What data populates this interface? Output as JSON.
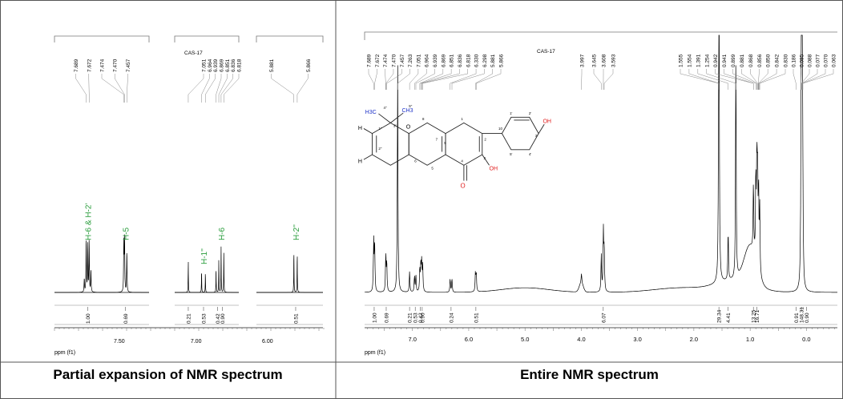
{
  "captions": {
    "left": "Partial expansion of NMR spectrum",
    "right": "Entire NMR spectrum"
  },
  "colors": {
    "spectrum": "#000000",
    "assignment": "#2a9d3c",
    "methyl": "#1f33c8",
    "hydroxyl": "#e01b1b",
    "frame": "#555555"
  },
  "chart_data": [
    {
      "type": "line",
      "title": "",
      "xlabel": "ppm (f1)",
      "ylabel": "",
      "panels": [
        {
          "sample_label": "",
          "xlim": [
            7.87,
            7.33
          ],
          "ticks": [
            {
              "value": 7.5,
              "label": "7.50"
            }
          ],
          "peak_labels": [
            "7.689",
            "7.672",
            "7.474",
            "7.470",
            "7.457"
          ],
          "peaks": [
            {
              "ppm": 7.7,
              "h": 0.18
            },
            {
              "ppm": 7.689,
              "h": 0.72
            },
            {
              "ppm": 7.68,
              "h": 0.62
            },
            {
              "ppm": 7.672,
              "h": 0.7
            },
            {
              "ppm": 7.662,
              "h": 0.3
            },
            {
              "ppm": 7.474,
              "h": 0.66
            },
            {
              "ppm": 7.47,
              "h": 0.72
            },
            {
              "ppm": 7.457,
              "h": 0.55
            }
          ],
          "assignments": [
            {
              "ppm": 7.68,
              "label": "H-6 & H-2'"
            },
            {
              "ppm": 7.466,
              "label": "H-5"
            }
          ],
          "integrals": [
            {
              "ppm": 7.68,
              "value": "1.00"
            },
            {
              "ppm": 7.466,
              "value": "0.69"
            }
          ]
        },
        {
          "sample_label": "CAS-17",
          "xlim": [
            7.14,
            6.72
          ],
          "ticks": [
            {
              "value": 7.0,
              "label": "7.00"
            }
          ],
          "peak_labels": [
            "7.051",
            "6.964",
            "6.939",
            "6.869",
            "6.851",
            "6.836",
            "6.818"
          ],
          "peaks": [
            {
              "ppm": 7.051,
              "h": 0.4
            },
            {
              "ppm": 6.964,
              "h": 0.28
            },
            {
              "ppm": 6.939,
              "h": 0.25
            },
            {
              "ppm": 6.869,
              "h": 0.3
            },
            {
              "ppm": 6.851,
              "h": 0.42
            },
            {
              "ppm": 6.836,
              "h": 0.6
            },
            {
              "ppm": 6.818,
              "h": 0.55
            }
          ],
          "assignments": [
            {
              "ppm": 6.951,
              "label": "H-1''"
            },
            {
              "ppm": 6.836,
              "label": "H-6"
            }
          ],
          "integrals": [
            {
              "ppm": 7.051,
              "value": "0.21"
            },
            {
              "ppm": 6.951,
              "value": "0.53"
            },
            {
              "ppm": 6.86,
              "value": "0.42"
            },
            {
              "ppm": 6.827,
              "value": "0.90"
            }
          ]
        },
        {
          "sample_label": "",
          "xlim": [
            6.05,
            5.75
          ],
          "ticks": [
            {
              "value": 6.0,
              "label": "6.00"
            }
          ],
          "peak_labels": [
            "5.881",
            "5.866"
          ],
          "peaks": [
            {
              "ppm": 5.881,
              "h": 0.52
            },
            {
              "ppm": 5.866,
              "h": 0.5
            }
          ],
          "assignments": [
            {
              "ppm": 5.873,
              "label": "H-2''"
            }
          ],
          "integrals": [
            {
              "ppm": 5.873,
              "value": "0.51"
            }
          ]
        }
      ]
    },
    {
      "type": "line",
      "title": "",
      "xlabel": "ppm (f1)",
      "ylabel": "",
      "sample_label": "CAS-17",
      "xlim": [
        7.85,
        -0.55
      ],
      "ticks": [
        7.0,
        6.0,
        5.0,
        4.0,
        3.0,
        2.0,
        1.0,
        0.0
      ],
      "tick_labels": [
        "7.0",
        "6.0",
        "5.0",
        "4.0",
        "3.0",
        "2.0",
        "1.0",
        "0.0"
      ],
      "peak_labels": [
        "7.689",
        "7.672",
        "7.474",
        "7.470",
        "7.457",
        "7.263",
        "7.051",
        "6.964",
        "6.939",
        "6.869",
        "6.851",
        "6.836",
        "6.818",
        "6.330",
        "6.298",
        "5.881",
        "5.866",
        "3.997",
        "3.645",
        "3.608",
        "3.593",
        "1.555",
        "1.554",
        "1.391",
        "1.254",
        "0.942",
        "0.941",
        "0.899",
        "0.881",
        "0.868",
        "0.856",
        "0.850",
        "0.842",
        "0.830",
        "0.186",
        "0.095",
        "0.088",
        "0.077",
        "0.070",
        "0.063"
      ],
      "peaks": [
        {
          "ppm": 7.689,
          "h": 0.22
        },
        {
          "ppm": 7.672,
          "h": 0.21
        },
        {
          "ppm": 7.474,
          "h": 0.16
        },
        {
          "ppm": 7.457,
          "h": 0.13
        },
        {
          "ppm": 7.263,
          "h": 1.0
        },
        {
          "ppm": 7.051,
          "h": 0.09
        },
        {
          "ppm": 6.964,
          "h": 0.07
        },
        {
          "ppm": 6.939,
          "h": 0.07
        },
        {
          "ppm": 6.869,
          "h": 0.1
        },
        {
          "ppm": 6.851,
          "h": 0.12
        },
        {
          "ppm": 6.836,
          "h": 0.12
        },
        {
          "ppm": 6.818,
          "h": 0.11
        },
        {
          "ppm": 6.33,
          "h": 0.06
        },
        {
          "ppm": 6.298,
          "h": 0.06
        },
        {
          "ppm": 5.881,
          "h": 0.08
        },
        {
          "ppm": 5.866,
          "h": 0.08
        },
        {
          "ppm": 3.997,
          "h": 0.04
        },
        {
          "ppm": 3.645,
          "h": 0.16
        },
        {
          "ppm": 3.608,
          "h": 0.26
        },
        {
          "ppm": 3.593,
          "h": 0.19
        },
        {
          "ppm": 1.555,
          "h": 0.96
        },
        {
          "ppm": 1.554,
          "h": 0.9
        },
        {
          "ppm": 1.391,
          "h": 0.22
        },
        {
          "ppm": 1.254,
          "h": 1.0
        },
        {
          "ppm": 0.942,
          "h": 0.3
        },
        {
          "ppm": 0.899,
          "h": 0.36
        },
        {
          "ppm": 0.881,
          "h": 0.44
        },
        {
          "ppm": 0.868,
          "h": 0.4
        },
        {
          "ppm": 0.85,
          "h": 0.34
        },
        {
          "ppm": 0.83,
          "h": 0.28
        },
        {
          "ppm": 0.095,
          "h": 0.55
        },
        {
          "ppm": 0.088,
          "h": 0.88
        },
        {
          "ppm": 0.077,
          "h": 0.7
        },
        {
          "ppm": 0.07,
          "h": 0.45
        },
        {
          "ppm": 0.063,
          "h": 0.2
        }
      ],
      "integrals": [
        {
          "ppm": 7.68,
          "value": "1.00"
        },
        {
          "ppm": 7.466,
          "value": "0.69"
        },
        {
          "ppm": 7.051,
          "value": "0.21"
        },
        {
          "ppm": 6.95,
          "value": "0.53"
        },
        {
          "ppm": 6.86,
          "value": "0.42"
        },
        {
          "ppm": 6.827,
          "value": "0.90"
        },
        {
          "ppm": 6.314,
          "value": "0.24"
        },
        {
          "ppm": 5.873,
          "value": "0.51"
        },
        {
          "ppm": 3.61,
          "value": "6.07"
        },
        {
          "ppm": 1.555,
          "value": "29.34"
        },
        {
          "ppm": 1.391,
          "value": "4.41"
        },
        {
          "ppm": 0.942,
          "value": "13.25"
        },
        {
          "ppm": 0.88,
          "value": "16.71"
        },
        {
          "ppm": 0.186,
          "value": "0.91"
        },
        {
          "ppm": 0.088,
          "value": "148.31"
        },
        {
          "ppm": 0.0,
          "value": "0.90"
        }
      ],
      "structure": {
        "labels": [
          "H",
          "H",
          "H3C",
          "CH3",
          "O",
          "O",
          "OH",
          "OH",
          "1''",
          "2''",
          "3''",
          "4''",
          "5''",
          "1",
          "2",
          "3",
          "4",
          "5",
          "6",
          "7",
          "8",
          "9",
          "10",
          "1'",
          "2'",
          "3'",
          "4'",
          "5'",
          "6'"
        ]
      }
    }
  ]
}
